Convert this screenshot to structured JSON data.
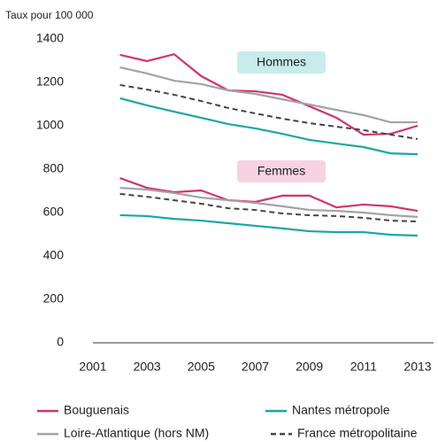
{
  "chart_data": {
    "type": "line",
    "y_label": "Taux pour 100 000",
    "groups": [
      "Hommes",
      "Femmes"
    ],
    "x": [
      2002,
      2003,
      2004,
      2005,
      2006,
      2007,
      2008,
      2009,
      2010,
      2011,
      2012,
      2013
    ],
    "xlim": [
      2001,
      2013
    ],
    "xticks": [
      2001,
      2003,
      2005,
      2007,
      2009,
      2011,
      2013
    ],
    "ylim": [
      0,
      1400
    ],
    "yticks": [
      0,
      200,
      400,
      600,
      800,
      1000,
      1200,
      1400
    ],
    "grid": false,
    "series": [
      {
        "name": "Bouguenais",
        "color": "#d6336c",
        "dashed": false,
        "values": [
          [
            1327,
            1298,
            1330,
            1229,
            1163,
            1159,
            1143,
            1090,
            1037,
            959,
            963,
            1000
          ],
          [
            759,
            714,
            694,
            702,
            657,
            649,
            678,
            678,
            624,
            637,
            629,
            608
          ]
        ]
      },
      {
        "name": "Nantes métropole",
        "color": "#1aa6a6",
        "dashed": false,
        "values": [
          [
            1127,
            1094,
            1065,
            1037,
            1008,
            988,
            963,
            935,
            918,
            902,
            873,
            869
          ],
          [
            588,
            584,
            571,
            563,
            551,
            539,
            527,
            514,
            510,
            510,
            498,
            494
          ]
        ]
      },
      {
        "name": "Loire-Atlantique (hors NM)",
        "color": "#a3a3a3",
        "dashed": false,
        "values": [
          [
            1269,
            1241,
            1208,
            1192,
            1163,
            1147,
            1122,
            1098,
            1073,
            1049,
            1016,
            1016
          ],
          [
            714,
            706,
            690,
            669,
            657,
            645,
            629,
            612,
            608,
            600,
            588,
            580
          ]
        ]
      },
      {
        "name": "France métropolitaine",
        "color": "#444444",
        "dashed": true,
        "values": [
          [
            1188,
            1167,
            1143,
            1114,
            1082,
            1057,
            1033,
            1012,
            996,
            980,
            959,
            939
          ],
          [
            686,
            673,
            657,
            641,
            620,
            612,
            596,
            588,
            584,
            576,
            563,
            559
          ]
        ]
      }
    ]
  }
}
